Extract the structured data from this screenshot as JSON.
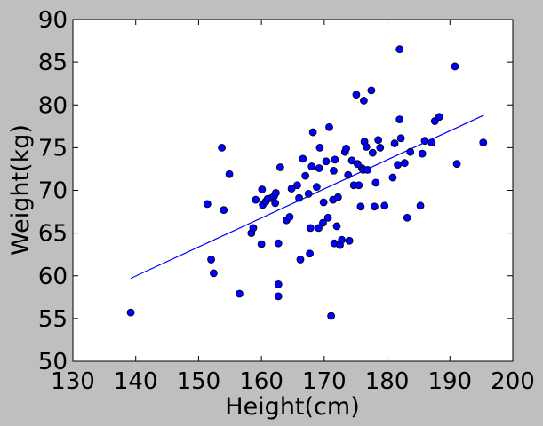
{
  "chart_data": {
    "type": "scatter",
    "title": "",
    "xlabel": "Height(cm)",
    "ylabel": "Weight(kg)",
    "xlim": [
      130,
      200
    ],
    "ylim": [
      50,
      90
    ],
    "xticks": [
      130,
      140,
      150,
      160,
      170,
      180,
      190,
      200
    ],
    "yticks": [
      50,
      55,
      60,
      65,
      70,
      75,
      80,
      85,
      90
    ],
    "grid": false,
    "legend": "none",
    "colors": {
      "background": "#bfbfbf",
      "plot_area": "#ffffff",
      "marker": "#0000ff",
      "marker_edge": "#000000",
      "fit_line": "#0000ff"
    },
    "points": [
      [
        139.2,
        55.7
      ],
      [
        151.4,
        68.4
      ],
      [
        152.0,
        61.9
      ],
      [
        152.4,
        60.3
      ],
      [
        153.7,
        75.0
      ],
      [
        154.0,
        67.7
      ],
      [
        154.9,
        71.9
      ],
      [
        156.5,
        57.9
      ],
      [
        158.4,
        65.0
      ],
      [
        158.7,
        65.6
      ],
      [
        159.1,
        68.9
      ],
      [
        160.0,
        63.7
      ],
      [
        160.1,
        70.1
      ],
      [
        160.2,
        68.3
      ],
      [
        160.7,
        68.7
      ],
      [
        161.0,
        69.0
      ],
      [
        161.6,
        69.1
      ],
      [
        162.0,
        69.3
      ],
      [
        162.2,
        68.5
      ],
      [
        162.3,
        69.7
      ],
      [
        162.7,
        59.0
      ],
      [
        162.7,
        57.6
      ],
      [
        162.7,
        63.8
      ],
      [
        163.0,
        72.7
      ],
      [
        164.0,
        66.5
      ],
      [
        164.5,
        66.9
      ],
      [
        164.8,
        70.2
      ],
      [
        165.7,
        70.6
      ],
      [
        166.0,
        69.1
      ],
      [
        166.2,
        61.9
      ],
      [
        166.6,
        73.7
      ],
      [
        167.0,
        71.7
      ],
      [
        167.5,
        69.6
      ],
      [
        167.7,
        62.6
      ],
      [
        167.8,
        65.6
      ],
      [
        168.0,
        72.8
      ],
      [
        168.2,
        76.8
      ],
      [
        168.8,
        70.4
      ],
      [
        169.1,
        65.6
      ],
      [
        169.2,
        72.6
      ],
      [
        169.3,
        75.0
      ],
      [
        169.8,
        66.2
      ],
      [
        169.9,
        68.6
      ],
      [
        170.3,
        73.4
      ],
      [
        170.6,
        66.8
      ],
      [
        170.8,
        77.4
      ],
      [
        171.1,
        55.3
      ],
      [
        171.4,
        68.9
      ],
      [
        171.5,
        72.3
      ],
      [
        171.6,
        63.8
      ],
      [
        171.7,
        73.6
      ],
      [
        172.0,
        65.8
      ],
      [
        172.2,
        69.2
      ],
      [
        172.5,
        63.6
      ],
      [
        172.8,
        64.2
      ],
      [
        173.3,
        74.5
      ],
      [
        173.5,
        74.9
      ],
      [
        173.8,
        71.8
      ],
      [
        174.0,
        64.1
      ],
      [
        174.4,
        73.5
      ],
      [
        174.7,
        70.6
      ],
      [
        175.1,
        81.2
      ],
      [
        175.3,
        73.1
      ],
      [
        175.5,
        70.6
      ],
      [
        175.8,
        68.1
      ],
      [
        176.0,
        72.6
      ],
      [
        176.2,
        72.4
      ],
      [
        176.3,
        80.5
      ],
      [
        176.4,
        75.7
      ],
      [
        176.7,
        75.1
      ],
      [
        176.9,
        72.4
      ],
      [
        177.5,
        81.7
      ],
      [
        177.7,
        74.4
      ],
      [
        178.0,
        68.1
      ],
      [
        178.2,
        70.9
      ],
      [
        178.6,
        75.9
      ],
      [
        178.9,
        75.0
      ],
      [
        179.6,
        68.2
      ],
      [
        180.9,
        71.5
      ],
      [
        181.2,
        75.5
      ],
      [
        181.7,
        73.0
      ],
      [
        182.0,
        86.5
      ],
      [
        182.0,
        78.3
      ],
      [
        182.2,
        76.1
      ],
      [
        182.8,
        73.2
      ],
      [
        183.2,
        66.8
      ],
      [
        183.7,
        74.5
      ],
      [
        185.3,
        68.2
      ],
      [
        185.6,
        74.3
      ],
      [
        186.0,
        75.8
      ],
      [
        187.1,
        75.6
      ],
      [
        187.6,
        78.1
      ],
      [
        188.3,
        78.6
      ],
      [
        190.8,
        84.5
      ],
      [
        191.1,
        73.1
      ],
      [
        195.3,
        75.6
      ]
    ],
    "fit_line": {
      "x": [
        139.2,
        195.4
      ],
      "y": [
        59.7,
        78.8
      ]
    }
  }
}
